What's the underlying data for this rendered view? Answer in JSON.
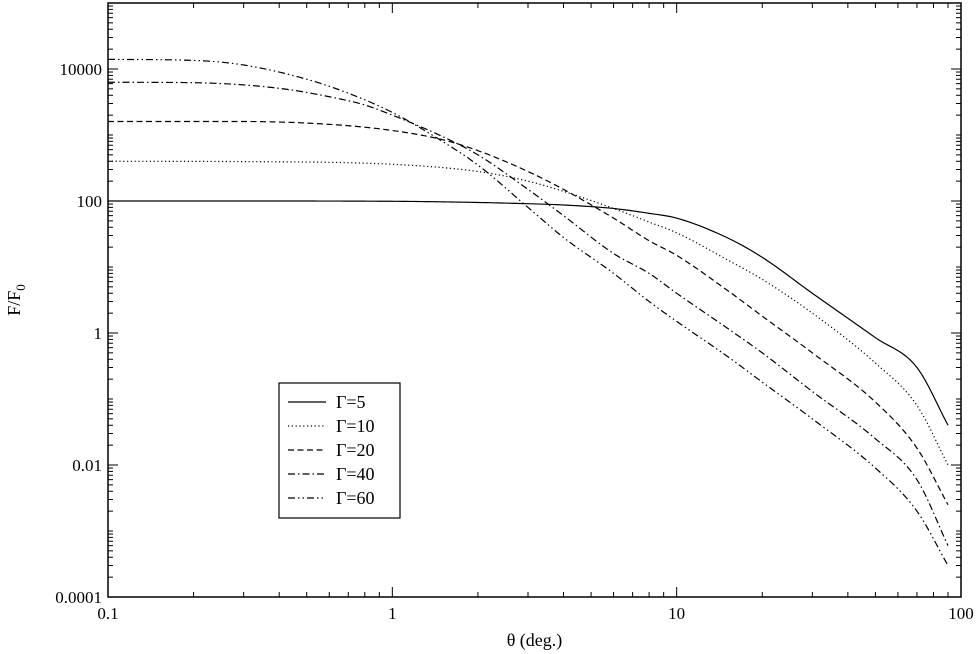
{
  "chart_data": {
    "type": "line",
    "title": "",
    "xlabel": "θ (deg.)",
    "ylabel_main": "F/F",
    "ylabel_sub": "0",
    "x_scale": "log",
    "y_scale": "log",
    "xlim": [
      0.1,
      100
    ],
    "ylim": [
      0.0001,
      100000
    ],
    "x_ticks": [
      {
        "value": 0.1,
        "label": "0.1"
      },
      {
        "value": 1,
        "label": "1"
      },
      {
        "value": 10,
        "label": "10"
      },
      {
        "value": 100,
        "label": "100"
      }
    ],
    "y_ticks": [
      {
        "value": 0.0001,
        "label": "0.0001"
      },
      {
        "value": 0.01,
        "label": "0.01"
      },
      {
        "value": 1,
        "label": "1"
      },
      {
        "value": 100,
        "label": "100"
      },
      {
        "value": 10000,
        "label": "10000"
      }
    ],
    "grid": false,
    "legend_position": "bottom-left",
    "series": [
      {
        "name": "Γ=5",
        "style": "solid",
        "x": [
          0.1,
          0.3,
          1,
          2,
          3,
          4,
          6,
          8,
          10,
          15,
          20,
          30,
          50,
          70,
          90
        ],
        "y": [
          100,
          100,
          99,
          95,
          91,
          87,
          77,
          65,
          55,
          28,
          14,
          4.0,
          0.85,
          0.3,
          0.04
        ]
      },
      {
        "name": "Γ=10",
        "style": "dotted",
        "x": [
          0.1,
          0.3,
          1,
          2,
          3,
          4,
          6,
          8,
          10,
          15,
          20,
          30,
          50,
          70,
          90
        ],
        "y": [
          400,
          395,
          360,
          280,
          200,
          140,
          77,
          48,
          33,
          13,
          6.5,
          2.0,
          0.35,
          0.08,
          0.01
        ]
      },
      {
        "name": "Γ=20",
        "style": "dashed",
        "x": [
          0.1,
          0.3,
          0.6,
          1,
          1.5,
          2,
          3,
          4,
          6,
          8,
          10,
          15,
          20,
          30,
          50,
          70,
          90
        ],
        "y": [
          1600,
          1600,
          1450,
          1170,
          850,
          580,
          280,
          150,
          55,
          25,
          15,
          4.5,
          1.8,
          0.5,
          0.09,
          0.018,
          0.0025
        ]
      },
      {
        "name": "Γ=40",
        "style": "dashdot",
        "x": [
          0.1,
          0.2,
          0.4,
          0.6,
          0.8,
          1,
          1.5,
          2,
          3,
          4,
          6,
          8,
          10,
          15,
          20,
          30,
          50,
          70,
          90
        ],
        "y": [
          6300,
          6200,
          5100,
          3800,
          2850,
          2000,
          950,
          500,
          150,
          60,
          16,
          8,
          4.0,
          1.2,
          0.5,
          0.13,
          0.025,
          0.006,
          0.0006
        ]
      },
      {
        "name": "Γ=60",
        "style": "dashdotdot",
        "x": [
          0.1,
          0.2,
          0.3,
          0.5,
          0.7,
          1,
          1.5,
          2,
          3,
          4,
          6,
          8,
          10,
          15,
          20,
          30,
          50,
          70,
          90
        ],
        "y": [
          14000,
          13500,
          11500,
          7000,
          4300,
          2200,
          800,
          350,
          80,
          28,
          8,
          3.0,
          1.5,
          0.45,
          0.18,
          0.05,
          0.009,
          0.002,
          0.0003
        ]
      }
    ]
  }
}
